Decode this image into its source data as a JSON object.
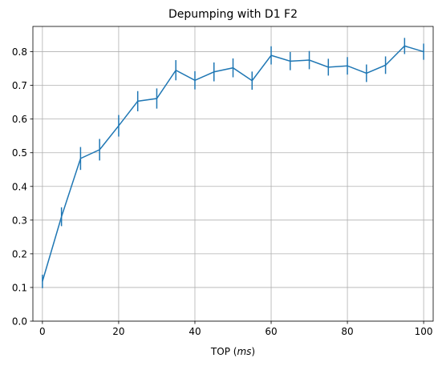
{
  "chart_data": {
    "type": "line",
    "title": "Depumping with D1 F2",
    "xlabel": "TOP",
    "xlabel_unit": "ms",
    "ylabel": "",
    "xlim": [
      -2.5,
      102.5
    ],
    "ylim": [
      0.0,
      0.875
    ],
    "xticks": [
      0,
      20,
      40,
      60,
      80,
      100
    ],
    "yticks": [
      0.0,
      0.1,
      0.2,
      0.3,
      0.4,
      0.5,
      0.6,
      0.7,
      0.8
    ],
    "xtick_labels": [
      "0",
      "20",
      "40",
      "60",
      "80",
      "100"
    ],
    "ytick_labels": [
      "0.0",
      "0.1",
      "0.2",
      "0.3",
      "0.4",
      "0.5",
      "0.6",
      "0.7",
      "0.8"
    ],
    "grid": true,
    "color": "#1f77b4",
    "series": [
      {
        "x": [
          0,
          5,
          10,
          15,
          20,
          25,
          30,
          35,
          40,
          45,
          50,
          55,
          60,
          65,
          70,
          75,
          80,
          85,
          90,
          95,
          100
        ],
        "y": [
          0.118,
          0.31,
          0.483,
          0.509,
          0.58,
          0.653,
          0.661,
          0.745,
          0.715,
          0.74,
          0.752,
          0.714,
          0.789,
          0.772,
          0.775,
          0.754,
          0.758,
          0.736,
          0.76,
          0.817,
          0.8
        ],
        "yerr": [
          0.02,
          0.028,
          0.034,
          0.032,
          0.032,
          0.03,
          0.03,
          0.03,
          0.027,
          0.028,
          0.028,
          0.027,
          0.027,
          0.027,
          0.027,
          0.025,
          0.026,
          0.026,
          0.026,
          0.024,
          0.024
        ]
      }
    ]
  }
}
